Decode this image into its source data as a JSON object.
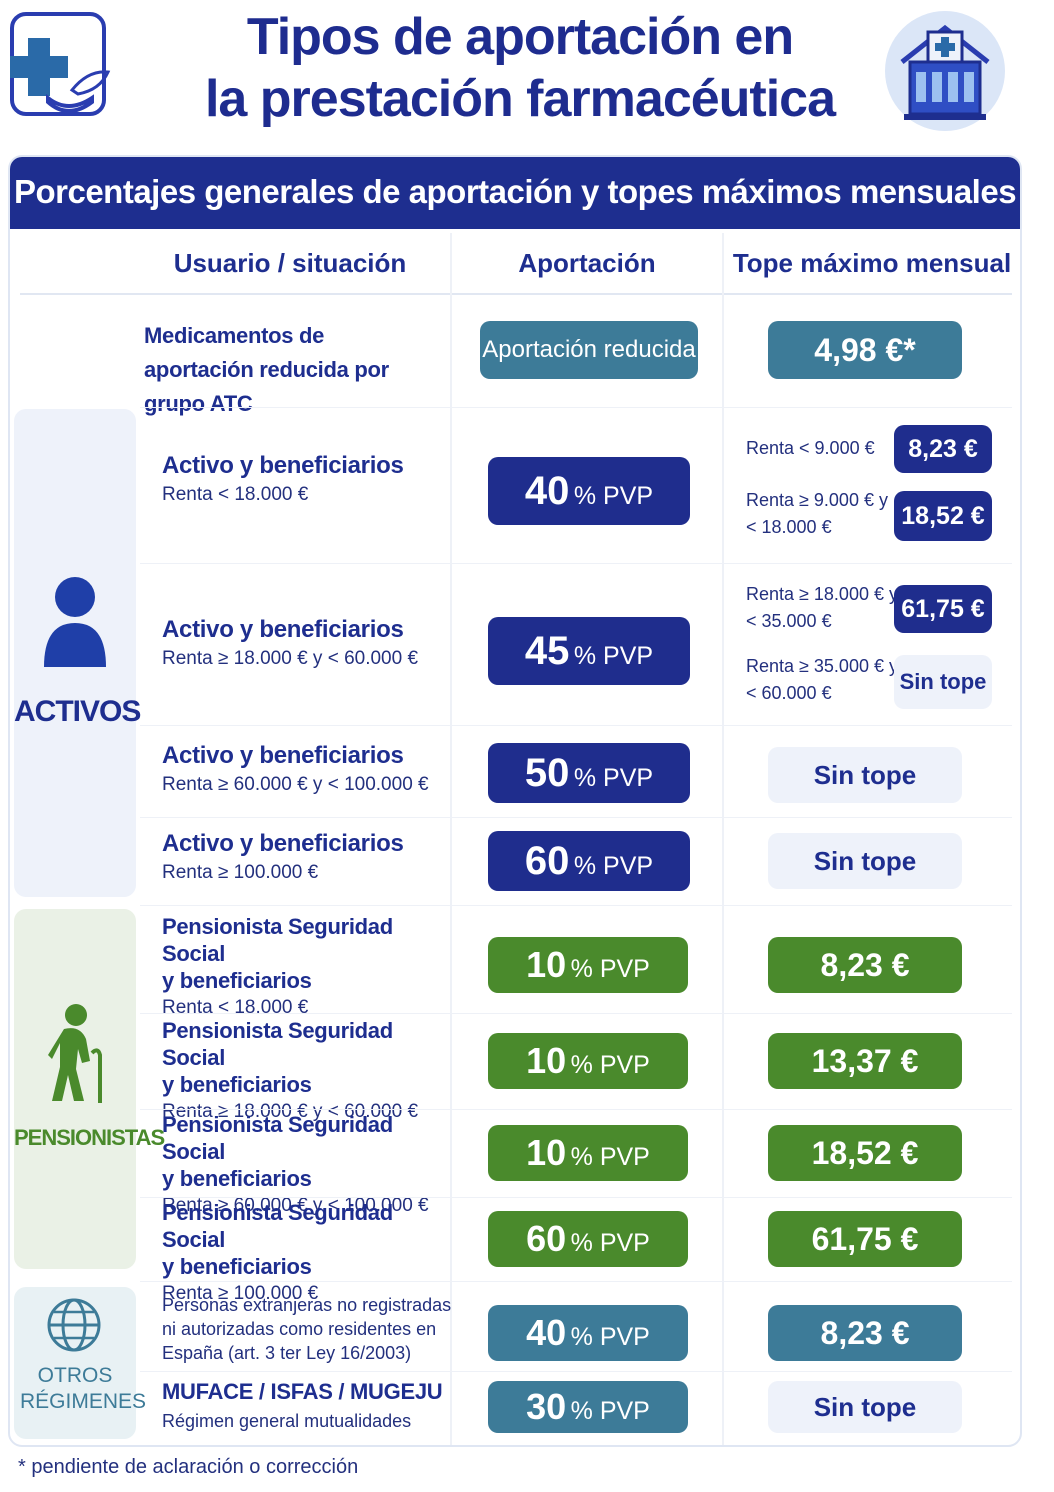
{
  "page": {
    "title_line1": "Tipos de aportación en",
    "title_line2": "la prestación farmacéutica",
    "footnote": "* pendiente de aclaración o corrección"
  },
  "table": {
    "banner": "Porcentajes generales de aportación y topes máximos mensuales",
    "headers": [
      "Usuario / situación",
      "Aportación",
      "Tope máximo mensual"
    ],
    "atc_row": {
      "user": "Medicamentos de aportación reducida por grupo ATC",
      "contribution": "Aportación reducida",
      "cap": "4,98 €*"
    },
    "groups": {
      "activos": "ACTIVOS",
      "pensionistas": "PENSIONISTAS",
      "otros": "OTROS RÉGIMENES"
    },
    "activos_rows": [
      {
        "title": "Activo y beneficiarios",
        "sub": "Renta < 18.000 €",
        "pct": "40",
        "unit": "% PVP",
        "caps": [
          {
            "label": "Renta < 9.000 €",
            "value": "8,23 €"
          },
          {
            "label_1": "Renta ≥ 9.000 € y",
            "label_2": "< 18.000 €",
            "value": "18,52 €"
          }
        ]
      },
      {
        "title": "Activo y beneficiarios",
        "sub": "Renta ≥ 18.000 € y  < 60.000 €",
        "pct": "45",
        "unit": "% PVP",
        "caps": [
          {
            "label_1": "Renta ≥ 18.000 € y",
            "label_2": "< 35.000 €",
            "value": "61,75 €"
          },
          {
            "label_1": "Renta ≥ 35.000 € y",
            "label_2": "< 60.000 €",
            "value": "Sin tope"
          }
        ]
      },
      {
        "title": "Activo y beneficiarios",
        "sub": "Renta ≥ 60.000 € y < 100.000 €",
        "pct": "50",
        "unit": "% PVP",
        "cap": "Sin tope"
      },
      {
        "title": "Activo y beneficiarios",
        "sub": "Renta ≥ 100.000 €",
        "pct": "60",
        "unit": "% PVP",
        "cap": "Sin tope"
      }
    ],
    "pensionistas_rows": [
      {
        "title_1": "Pensionista Seguridad Social",
        "title_2": "y beneficiarios",
        "sub": "Renta < 18.000 €",
        "pct": "10",
        "unit": "% PVP",
        "cap": "8,23 €"
      },
      {
        "title_1": "Pensionista Seguridad Social",
        "title_2": "y beneficiarios",
        "sub": "Renta ≥ 18.000 € y < 60.000 €",
        "pct": "10",
        "unit": "% PVP",
        "cap": "13,37 €"
      },
      {
        "title_1": "Pensionista Seguridad Social",
        "title_2": "y beneficiarios",
        "sub": "Renta ≥ 60.000 € y < 100.000 €",
        "pct": "10",
        "unit": "% PVP",
        "cap": "18,52 €"
      },
      {
        "title_1": "Pensionista Seguridad Social",
        "title_2": "y beneficiarios",
        "sub": "Renta ≥ 100.000 €",
        "pct": "60",
        "unit": "% PVP",
        "cap": "61,75 €"
      }
    ],
    "otros_rows": [
      {
        "line1": "Personas extranjeras no registradas",
        "line2": "ni autorizadas como residentes en",
        "line3": "España (art. 3 ter Ley 16/2003)",
        "pct": "40",
        "unit": "% PVP",
        "cap": "8,23 €"
      },
      {
        "title": "MUFACE / ISFAS / MUGEJU",
        "sub": "Régimen general mutualidades",
        "pct": "30",
        "unit": "% PVP",
        "cap": "Sin tope"
      }
    ]
  },
  "colors": {
    "navy": "#1f2d8d",
    "green": "#4a8a2c",
    "teal": "#3d7b98",
    "light": "#eef2fa"
  },
  "icons": [
    "pharmacy-logo-icon",
    "hospital-icon",
    "person-icon",
    "elderly-person-icon",
    "globe-icon"
  ]
}
